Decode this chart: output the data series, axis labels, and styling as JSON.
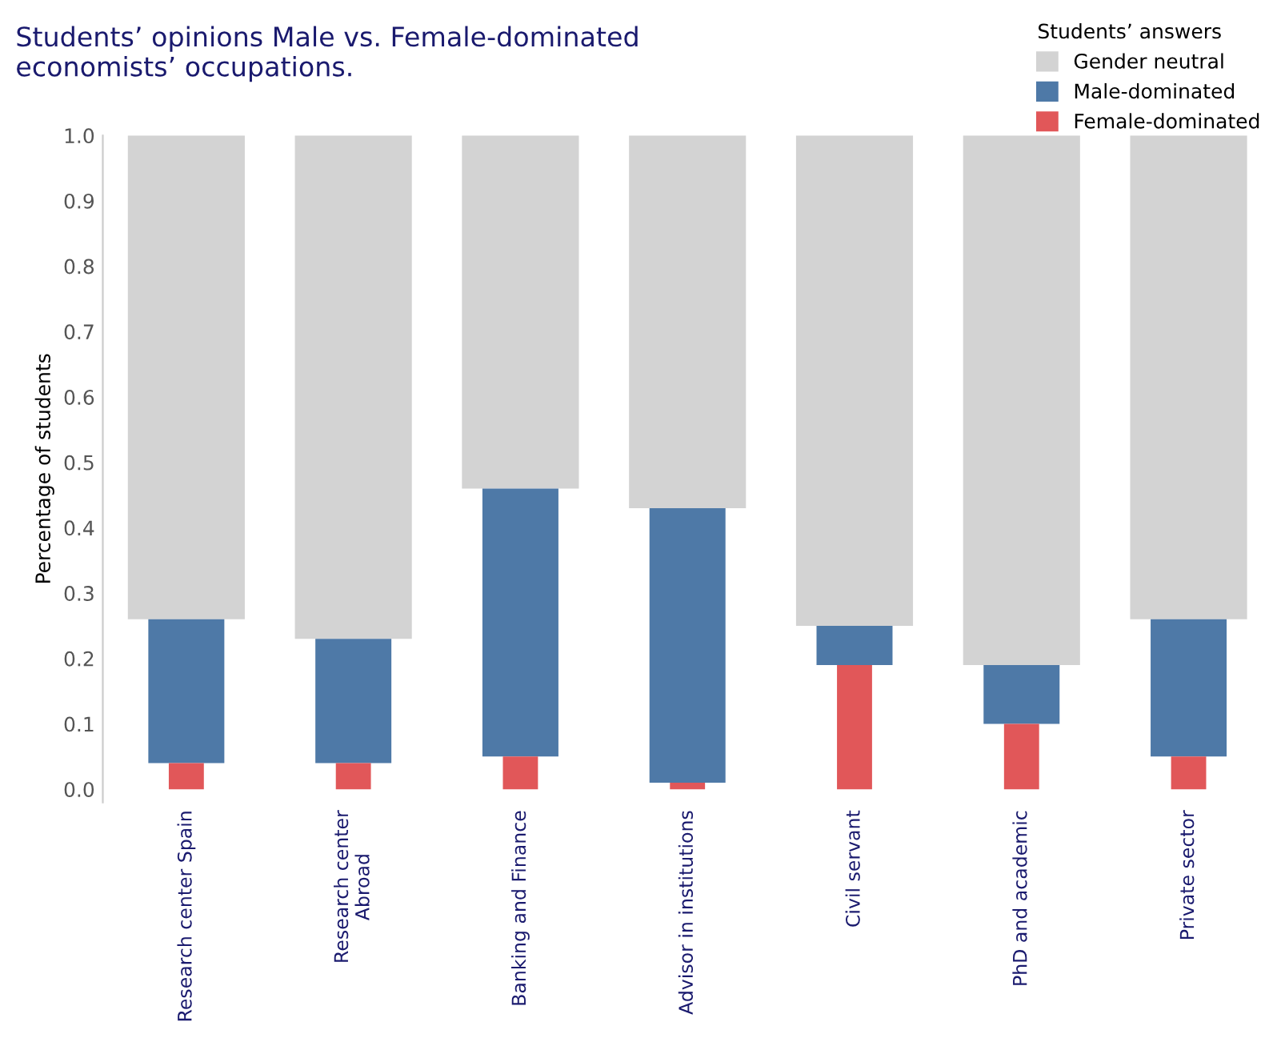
{
  "chart_data": {
    "type": "bar",
    "stacked": true,
    "title": "Students’ opinions Male vs. Female-dominated\neconomists’ occupations.",
    "ylabel": "Percentage of students",
    "legend_title": "Students’ answers",
    "legend": "top right",
    "categories": [
      "Research center Spain",
      "Research center\nAbroad",
      "Banking and Finance",
      "Advisor in institutions",
      "Civil servant",
      "PhD and academic",
      "Private sector"
    ],
    "series": [
      {
        "name": "Female-dominated",
        "color": "#e15759",
        "values": [
          0.04,
          0.04,
          0.05,
          0.01,
          0.19,
          0.1,
          0.05
        ]
      },
      {
        "name": "Male-dominated",
        "color": "#4e79a7",
        "values": [
          0.22,
          0.19,
          0.41,
          0.42,
          0.06,
          0.09,
          0.21
        ]
      },
      {
        "name": "Gender neutral",
        "color": "#d3d3d3",
        "values": [
          0.74,
          0.77,
          0.54,
          0.57,
          0.75,
          0.81,
          0.74
        ]
      }
    ],
    "ylim": [
      -0.02,
      1.0
    ],
    "yticks": [
      {
        "value": 0,
        "label": "0.0"
      },
      {
        "value": 0.1,
        "label": "0.1"
      },
      {
        "value": 0.2,
        "label": "0.2"
      },
      {
        "value": 0.3,
        "label": "0.3"
      },
      {
        "value": 0.4,
        "label": "0.4"
      },
      {
        "value": 0.5,
        "label": "0.5"
      },
      {
        "value": 0.6,
        "label": "0.6"
      },
      {
        "value": 0.7,
        "label": "0.7"
      },
      {
        "value": 0.8,
        "label": "0.8"
      },
      {
        "value": 0.9,
        "label": "0.9"
      },
      {
        "value": 1,
        "label": "1.0"
      }
    ],
    "grid": false
  }
}
